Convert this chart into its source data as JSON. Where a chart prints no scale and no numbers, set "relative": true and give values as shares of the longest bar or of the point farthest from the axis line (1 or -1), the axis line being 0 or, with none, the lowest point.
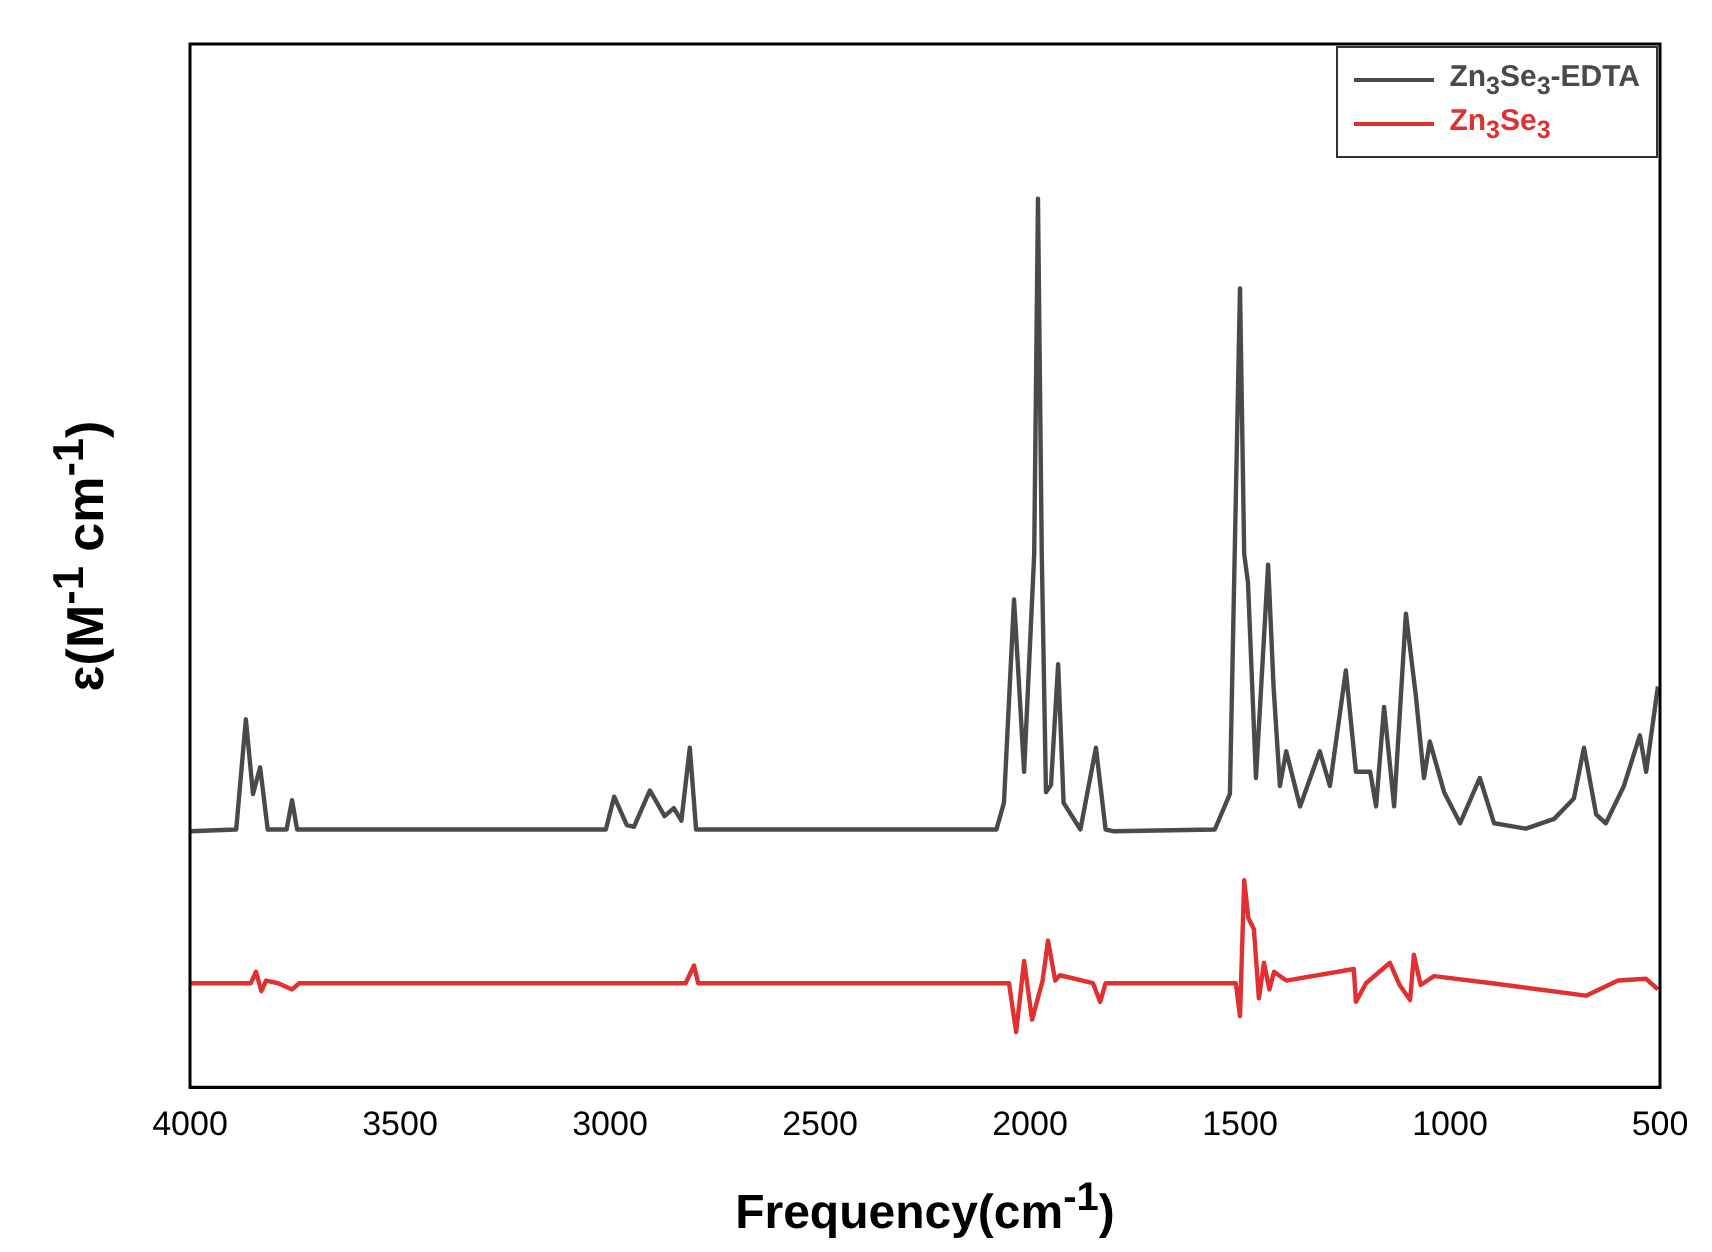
{
  "chart_data": {
    "type": "line",
    "relative": true,
    "xlabel": "Frequency(cm$^{-1}$)",
    "ylabel": "ɛ(M$^{-1}$ cm$^{-1}$)",
    "xlim": [
      4000,
      500
    ],
    "xticks": [
      4000,
      3500,
      3000,
      2500,
      2000,
      1500,
      1000,
      500
    ],
    "legend": "top right",
    "grid": false,
    "marker": "none",
    "line_style": "solid",
    "tick_labels": "x",
    "series": [
      {
        "name": "Zn$_{3}$Se$_{3}$-EDTA",
        "color": "#4a4a4a",
        "x": [
          4000,
          3890,
          3867,
          3850,
          3833,
          3815,
          3770,
          3757,
          3745,
          3010,
          2990,
          2960,
          2943,
          2905,
          2870,
          2848,
          2830,
          2810,
          2795,
          2080,
          2062,
          2038,
          2014,
          1990,
          1981,
          1972,
          1962,
          1950,
          1933,
          1920,
          1880,
          1843,
          1820,
          1800,
          1560,
          1524,
          1500,
          1490,
          1481,
          1462,
          1433,
          1420,
          1405,
          1390,
          1357,
          1310,
          1286,
          1248,
          1224,
          1190,
          1176,
          1157,
          1133,
          1105,
          1081,
          1062,
          1048,
          1014,
          976,
          929,
          895,
          819,
          752,
          705,
          681,
          652,
          629,
          586,
          548,
          533,
          505
        ],
        "values": [
          0.288,
          0.29,
          0.414,
          0.33,
          0.36,
          0.29,
          0.29,
          0.323,
          0.29,
          0.29,
          0.327,
          0.295,
          0.293,
          0.334,
          0.305,
          0.314,
          0.3,
          0.382,
          0.29,
          0.29,
          0.32,
          0.549,
          0.355,
          0.6,
          1,
          0.6,
          0.332,
          0.34,
          0.476,
          0.32,
          0.29,
          0.382,
          0.29,
          0.288,
          0.29,
          0.33,
          0.899,
          0.6,
          0.568,
          0.348,
          0.588,
          0.45,
          0.339,
          0.378,
          0.316,
          0.378,
          0.339,
          0.469,
          0.355,
          0.355,
          0.316,
          0.428,
          0.316,
          0.533,
          0.439,
          0.348,
          0.389,
          0.332,
          0.297,
          0.348,
          0.297,
          0.291,
          0.302,
          0.325,
          0.382,
          0.307,
          0.297,
          0.339,
          0.396,
          0.355,
          0.451
        ]
      },
      {
        "name": "Zn$_{3}$Se$_{3}$",
        "color": "#e03030",
        "x": [
          4000,
          3855,
          3843,
          3830,
          3819,
          3790,
          3757,
          3740,
          2820,
          2800,
          2790,
          2050,
          2033,
          2014,
          1995,
          1970,
          1957,
          1940,
          1929,
          1850,
          1833,
          1820,
          1510,
          1500,
          1490,
          1480,
          1467,
          1455,
          1443,
          1430,
          1419,
          1390,
          1229,
          1224,
          1200,
          1143,
          1120,
          1095,
          1086,
          1070,
          1038,
          900,
          676,
          600,
          533,
          505
        ],
        "values": [
          0.117,
          0.117,
          0.13,
          0.108,
          0.12,
          0.117,
          0.11,
          0.117,
          0.117,
          0.137,
          0.117,
          0.117,
          0.062,
          0.142,
          0.076,
          0.12,
          0.165,
          0.12,
          0.126,
          0.117,
          0.096,
          0.117,
          0.117,
          0.08,
          0.233,
          0.19,
          0.178,
          0.1,
          0.14,
          0.11,
          0.13,
          0.12,
          0.133,
          0.096,
          0.117,
          0.14,
          0.115,
          0.098,
          0.149,
          0.115,
          0.125,
          0.117,
          0.103,
          0.12,
          0.122,
          0.11
        ]
      }
    ]
  }
}
